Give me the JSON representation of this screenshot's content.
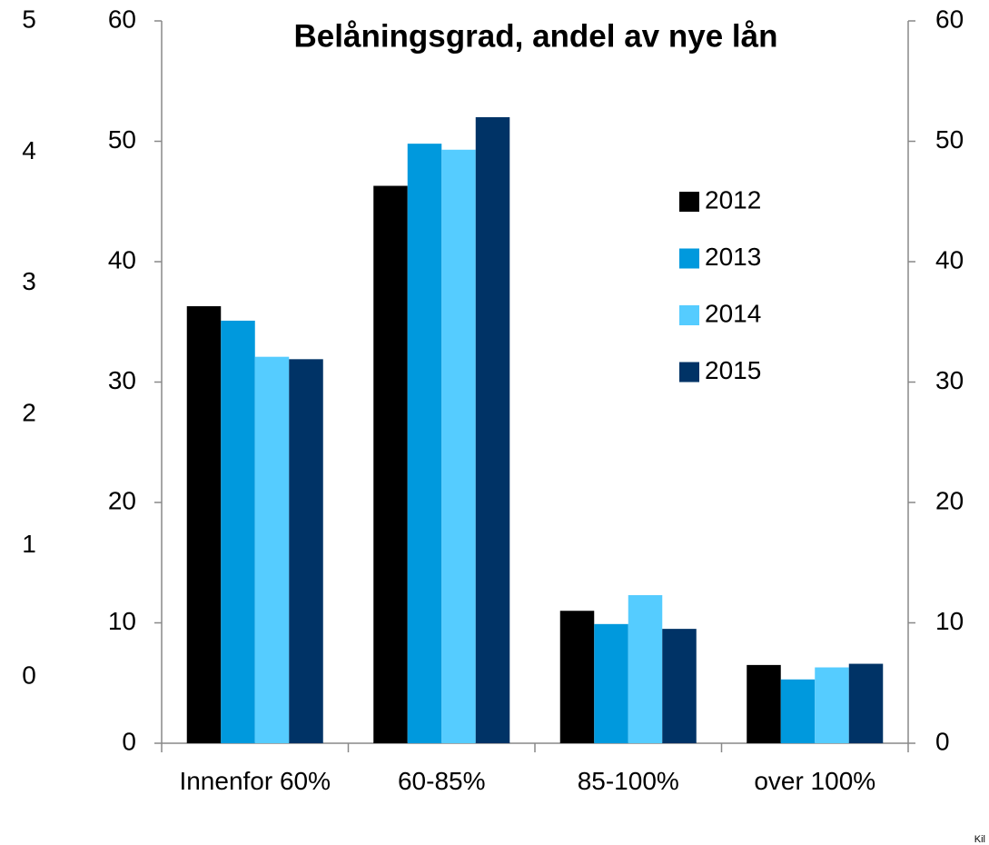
{
  "chart_data": {
    "type": "bar",
    "title": "Belåningsgrad, andel av nye lån",
    "categories": [
      "Innenfor 60%",
      "60-85%",
      "85-100%",
      "over 100%"
    ],
    "series": [
      {
        "name": "2012",
        "color": "#000000",
        "values": [
          36.3,
          46.3,
          11.0,
          6.5
        ]
      },
      {
        "name": "2013",
        "color": "#0099dd",
        "values": [
          35.1,
          49.8,
          9.9,
          5.3
        ]
      },
      {
        "name": "2014",
        "color": "#55ccff",
        "values": [
          32.1,
          49.3,
          12.3,
          6.3
        ]
      },
      {
        "name": "2015",
        "color": "#003366",
        "values": [
          31.9,
          52.0,
          9.5,
          6.6
        ]
      }
    ],
    "ylim": [
      0,
      60
    ],
    "yticks": [
      0,
      10,
      20,
      30,
      40,
      50,
      60
    ],
    "y2lim": [
      0,
      60
    ],
    "y2ticks": [
      0,
      10,
      20,
      30,
      40,
      50,
      60
    ],
    "y3lim": [
      0,
      5
    ],
    "y3ticks": [
      0,
      1,
      2,
      3,
      4,
      5
    ],
    "legend": "right",
    "grid": false,
    "source": "Kil"
  }
}
